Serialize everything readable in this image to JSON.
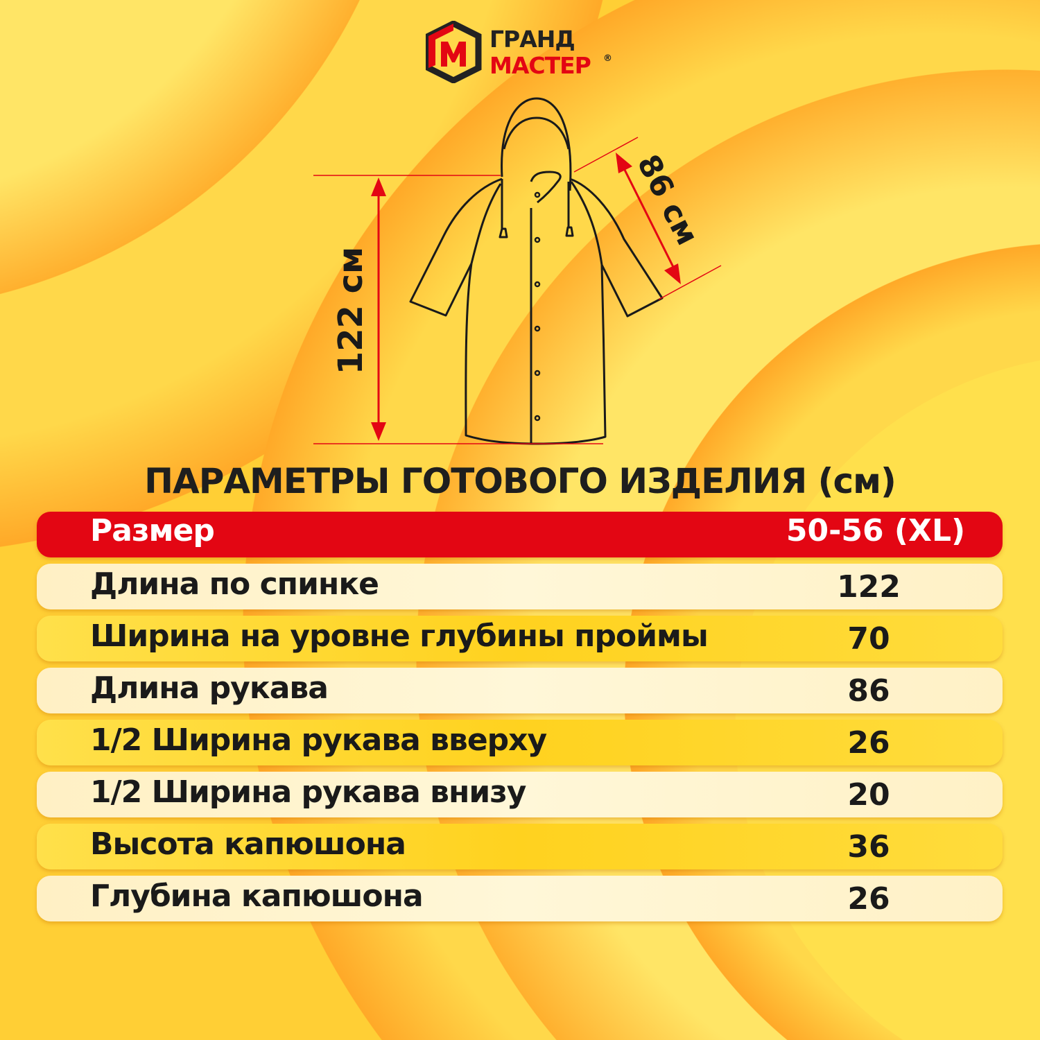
{
  "brand": {
    "name_line1": "ГРАНД",
    "name_line2": "МАСТЕР",
    "registered": "®",
    "colors": {
      "red": "#e30613",
      "dark": "#222222"
    }
  },
  "diagram": {
    "length_label": "122 см",
    "sleeve_label": "86 см",
    "measure_color": "#e30613"
  },
  "title": "ПАРАМЕТРЫ ГОТОВОГО ИЗДЕЛИЯ (см)",
  "table": {
    "header": {
      "label": "Размер",
      "value": "50-56 (XL)"
    },
    "rows": [
      {
        "label": "Длина по спинке",
        "value": "122"
      },
      {
        "label": "Ширина на уровне глубины проймы",
        "value": "70"
      },
      {
        "label": "Длина рукава",
        "value": "86"
      },
      {
        "label": "1/2 Ширина рукава вверху",
        "value": "26"
      },
      {
        "label": "1/2 Ширина рукава внизу",
        "value": "20"
      },
      {
        "label": "Высота капюшона",
        "value": "36"
      },
      {
        "label": "Глубина капюшона",
        "value": "26"
      }
    ]
  }
}
